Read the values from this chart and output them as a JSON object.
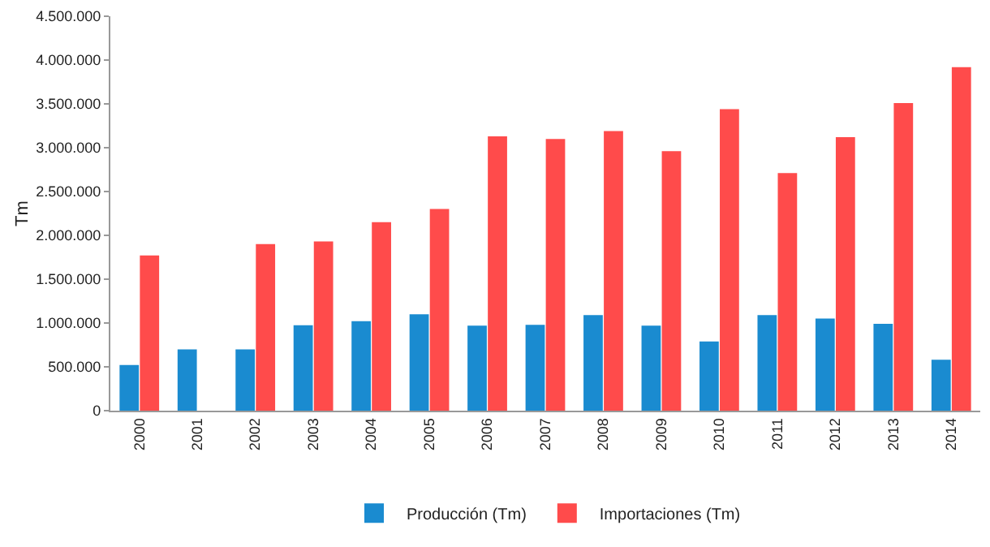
{
  "chart_data": {
    "type": "bar",
    "ylabel": "Tm",
    "categories": [
      "2000",
      "2001",
      "2002",
      "2003",
      "2004",
      "2005",
      "2006",
      "2007",
      "2008",
      "2009",
      "2010",
      "2011",
      "2012",
      "2013",
      "2014"
    ],
    "series": [
      {
        "name": "Producción (Tm)",
        "color": "#1a8bd0",
        "values": [
          520000,
          700000,
          700000,
          975000,
          1020000,
          1100000,
          970000,
          980000,
          1090000,
          970000,
          790000,
          1090000,
          1050000,
          990000,
          580000
        ]
      },
      {
        "name": "Importaciones (Tm)",
        "color": "#ff4b4b",
        "values": [
          1770000,
          null,
          1900000,
          1930000,
          2150000,
          2300000,
          3130000,
          3100000,
          3190000,
          2960000,
          3440000,
          2710000,
          3120000,
          3510000,
          3920000
        ]
      }
    ],
    "ylim": [
      0,
      4500000
    ],
    "yticks": [
      {
        "value": 0,
        "label": "0"
      },
      {
        "value": 500000,
        "label": "500.000"
      },
      {
        "value": 1000000,
        "label": "1.000.000"
      },
      {
        "value": 1500000,
        "label": "1.500.000"
      },
      {
        "value": 2000000,
        "label": "2.000.000"
      },
      {
        "value": 2500000,
        "label": "2.500.000"
      },
      {
        "value": 3000000,
        "label": "3.000.000"
      },
      {
        "value": 3500000,
        "label": "3.500.000"
      },
      {
        "value": 4000000,
        "label": "4.000.000"
      },
      {
        "value": 4500000,
        "label": "4.500.000"
      }
    ],
    "grid": false,
    "legend": "bottom"
  }
}
